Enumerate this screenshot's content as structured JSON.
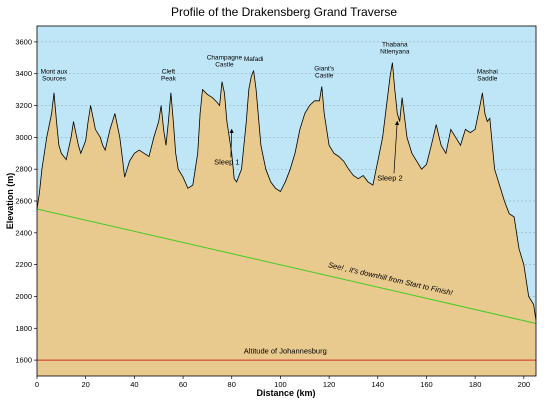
{
  "chart_data": {
    "type": "area",
    "title": "Profile of the Drakensberg Grand Traverse",
    "xlabel": "Distance (km)",
    "ylabel": "Elevation (m)",
    "xlim": [
      0,
      205
    ],
    "ylim": [
      1500,
      3700
    ],
    "xticks": [
      0,
      20,
      40,
      60,
      80,
      100,
      120,
      140,
      160,
      180,
      200
    ],
    "yticks": [
      1600,
      1800,
      2000,
      2200,
      2400,
      2600,
      2800,
      3000,
      3200,
      3400,
      3600
    ],
    "grid": "horizontal dashed",
    "colors": {
      "sky": "#bfe6f7",
      "terrain": "#e8c98e",
      "outline": "#000000",
      "slope_line": "#44cc22",
      "altitude_line": "#cc3322"
    },
    "profile": {
      "x": [
        0,
        1,
        2,
        4,
        6,
        7,
        8,
        9,
        10,
        12,
        14,
        15,
        17,
        18,
        20,
        21,
        22,
        24,
        26,
        27,
        28,
        30,
        32,
        34,
        35,
        36,
        38,
        40,
        42,
        44,
        46,
        48,
        50,
        51,
        52,
        53,
        54,
        55,
        56,
        57,
        58,
        60,
        62,
        64,
        66,
        67,
        68,
        70,
        72,
        74,
        75,
        76,
        77,
        78,
        80,
        81,
        82,
        84,
        86,
        87,
        88,
        89,
        90,
        92,
        94,
        96,
        98,
        100,
        102,
        104,
        106,
        108,
        110,
        112,
        114,
        116,
        117,
        118,
        120,
        122,
        124,
        126,
        128,
        130,
        132,
        134,
        136,
        138,
        140,
        142,
        144,
        145,
        146,
        147,
        148,
        149,
        150,
        152,
        154,
        156,
        158,
        160,
        162,
        164,
        166,
        168,
        170,
        172,
        174,
        176,
        178,
        180,
        182,
        183,
        184,
        185,
        186,
        188,
        190,
        192,
        194,
        196,
        198,
        200,
        202,
        204,
        205
      ],
      "y": [
        2550,
        2650,
        2800,
        3000,
        3150,
        3280,
        3100,
        2950,
        2900,
        2860,
        3000,
        3100,
        2950,
        2900,
        2980,
        3100,
        3200,
        3050,
        3000,
        2950,
        2920,
        3050,
        3150,
        3000,
        2880,
        2750,
        2850,
        2900,
        2920,
        2900,
        2880,
        3000,
        3100,
        3200,
        3050,
        2950,
        3100,
        3280,
        3100,
        2900,
        2800,
        2750,
        2680,
        2700,
        2900,
        3150,
        3300,
        3270,
        3250,
        3220,
        3200,
        3350,
        3280,
        3100,
        2900,
        2740,
        2720,
        2800,
        3100,
        3300,
        3380,
        3420,
        3300,
        2950,
        2800,
        2720,
        2680,
        2660,
        2720,
        2800,
        2900,
        3050,
        3150,
        3200,
        3230,
        3230,
        3320,
        3150,
        2950,
        2900,
        2880,
        2850,
        2800,
        2760,
        2740,
        2760,
        2720,
        2700,
        2850,
        3000,
        3250,
        3380,
        3470,
        3300,
        3150,
        3100,
        3250,
        3000,
        2900,
        2850,
        2800,
        2830,
        2950,
        3080,
        2950,
        2900,
        3050,
        3000,
        2950,
        3050,
        3030,
        3050,
        3200,
        3280,
        3150,
        3100,
        3120,
        2800,
        2700,
        2600,
        2520,
        2500,
        2300,
        2200,
        2000,
        1950,
        1850
      ],
      "fill_baseline": 1500
    },
    "reference_lines": [
      {
        "name": "Altitude of Johannesburg",
        "x": [
          0,
          205
        ],
        "y": [
          1600,
          1600
        ]
      },
      {
        "name": "See! , it's downhill from Start to Finish!",
        "x": [
          0,
          205
        ],
        "y": [
          2550,
          1830
        ]
      }
    ],
    "peak_labels": [
      {
        "text": "Mont aux\nSources",
        "x": 7
      },
      {
        "text": "Cleft\nPeak",
        "x": 54
      },
      {
        "text": "Champagne\nCastle",
        "x": 77
      },
      {
        "text": "Mafadi",
        "x": 89
      },
      {
        "text": "Giant's\nCastle",
        "x": 118
      },
      {
        "text": "Thabana\nNtlenyana",
        "x": 147
      },
      {
        "text": "Mashai\nSaddle",
        "x": 185
      }
    ],
    "annotations": [
      {
        "text": "Sleep 1",
        "arrow_to": [
          80,
          3050
        ]
      },
      {
        "text": "Sleep 2",
        "arrow_to": [
          148,
          3100
        ]
      }
    ]
  }
}
